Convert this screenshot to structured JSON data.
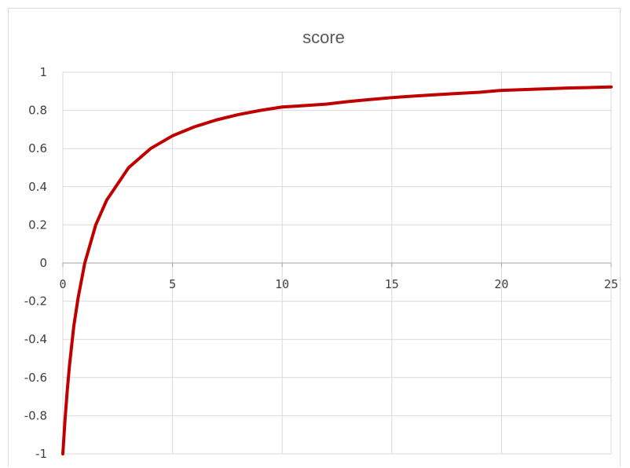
{
  "chart_data": {
    "type": "line",
    "title": "score",
    "xlabel": "",
    "ylabel": "",
    "xlim": [
      0,
      25
    ],
    "ylim": [
      -1,
      1
    ],
    "x_ticks": [
      "0",
      "5",
      "10",
      "15",
      "20",
      "25"
    ],
    "y_ticks": [
      "1",
      "0.8",
      "0.6",
      "0.4",
      "0.2",
      "0",
      "-0.2",
      "-0.4",
      "-0.6",
      "-0.8",
      "-1"
    ],
    "grid": true,
    "legend": "none",
    "series": [
      {
        "color": "#c00000",
        "x": [
          0,
          0.1,
          0.2,
          0.3,
          0.5,
          0.7,
          1,
          1.5,
          2,
          3,
          4,
          5,
          6,
          7,
          8,
          9,
          10,
          11,
          12,
          13,
          14,
          15,
          16,
          17,
          18,
          19,
          20,
          21,
          22,
          23,
          24,
          25
        ],
        "y": [
          -1,
          -0.82,
          -0.67,
          -0.54,
          -0.33,
          -0.18,
          0,
          0.2,
          0.33,
          0.5,
          0.6,
          0.667,
          0.714,
          0.75,
          0.778,
          0.8,
          0.818,
          0.825,
          0.833,
          0.846,
          0.857,
          0.867,
          0.875,
          0.882,
          0.889,
          0.895,
          0.905,
          0.909,
          0.913,
          0.917,
          0.92,
          0.923
        ]
      }
    ]
  }
}
